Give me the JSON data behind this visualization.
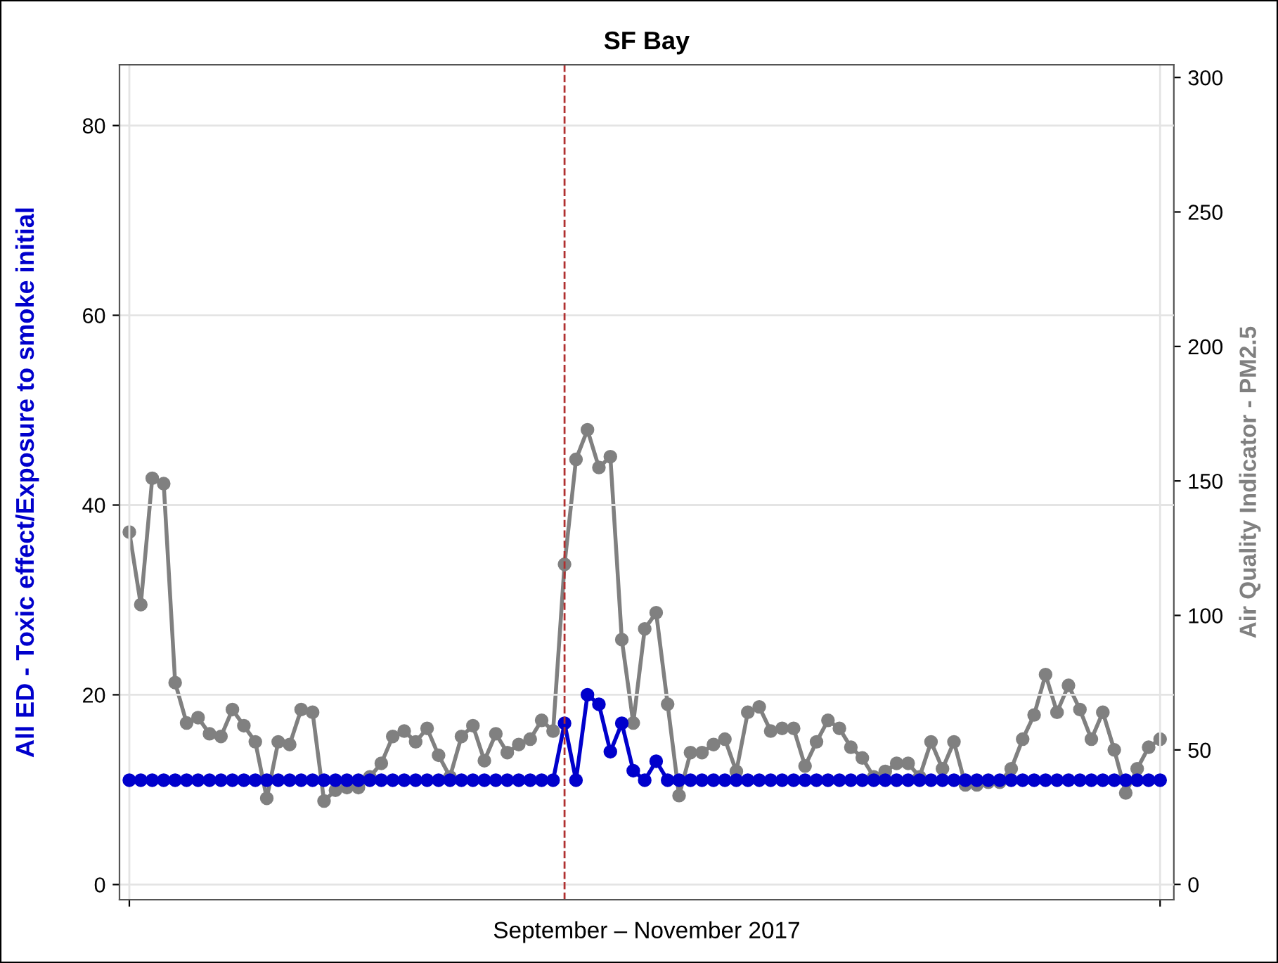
{
  "chart_data": {
    "type": "line",
    "title": "SF Bay",
    "xlabel": "September – November 2017",
    "ylabel": "All ED - Toxic effect/Exposure to smoke initial",
    "y2label": "Air Quality Indicator - PM2.5",
    "categories": [
      null,
      null,
      null,
      null,
      null,
      null,
      null,
      null,
      null,
      null,
      null,
      null,
      null,
      null,
      null,
      null,
      null,
      null,
      null,
      null,
      null,
      null,
      null,
      null,
      null,
      null,
      null,
      null,
      null,
      null,
      null,
      null,
      null,
      null,
      null,
      null,
      null,
      null,
      null,
      null,
      null,
      null,
      null,
      null,
      null,
      null,
      null,
      null,
      null,
      null,
      null,
      null,
      null,
      null,
      null,
      null,
      null,
      null,
      null,
      null,
      null,
      null,
      null,
      null,
      null,
      null,
      null,
      null,
      null,
      null,
      null,
      null,
      null,
      null,
      null,
      null,
      null,
      null,
      null,
      null,
      null,
      null,
      null,
      null,
      null,
      null,
      null,
      null,
      null,
      null,
      null
    ],
    "series": [
      {
        "color": "#808080",
        "axis": "y2",
        "values": [
          131,
          104,
          151,
          149,
          75,
          60,
          62,
          56,
          55,
          65,
          59,
          53,
          32,
          53,
          52,
          65,
          64,
          31,
          35,
          36,
          36,
          40,
          45,
          55,
          57,
          53,
          58,
          48,
          40,
          55,
          59,
          46,
          56,
          49,
          52,
          54,
          61,
          57,
          119,
          158,
          169,
          155,
          159,
          91,
          60,
          95,
          101,
          67,
          33,
          49,
          49,
          52,
          54,
          42,
          64,
          66,
          57,
          58,
          58,
          44,
          53,
          61,
          58,
          51,
          47,
          40,
          42,
          45,
          45,
          40,
          53,
          43,
          53,
          37,
          37,
          38,
          38,
          43,
          54,
          63,
          78,
          64,
          74,
          65,
          54,
          64,
          50,
          34,
          43,
          51,
          54
        ]
      },
      {
        "color": "#0000cc",
        "values": [
          11,
          11,
          11,
          11,
          11,
          11,
          11,
          11,
          11,
          11,
          11,
          11,
          11,
          11,
          11,
          11,
          11,
          11,
          11,
          11,
          11,
          11,
          11,
          11,
          11,
          11,
          11,
          11,
          11,
          11,
          11,
          11,
          11,
          11,
          11,
          11,
          11,
          11,
          17,
          11,
          20,
          19,
          14,
          17,
          12,
          11,
          13,
          11,
          11,
          11,
          11,
          11,
          11,
          11,
          11,
          11,
          11,
          11,
          11,
          11,
          11,
          11,
          11,
          11,
          11,
          11,
          11,
          11,
          11,
          11,
          11,
          11,
          11,
          11,
          11,
          11,
          11,
          11,
          11,
          11,
          11,
          11,
          11,
          11,
          11,
          11,
          11,
          11,
          11,
          11,
          11
        ]
      }
    ],
    "ylim": [
      -1.6,
      86.4
    ],
    "yticks": [
      0,
      20,
      40,
      60,
      80
    ],
    "y2lim": [
      -5.7,
      304.7
    ],
    "y2ticks": [
      0,
      50,
      100,
      150,
      200,
      250,
      300
    ],
    "grid": true,
    "marker": "circle",
    "line_style": "solid"
  }
}
